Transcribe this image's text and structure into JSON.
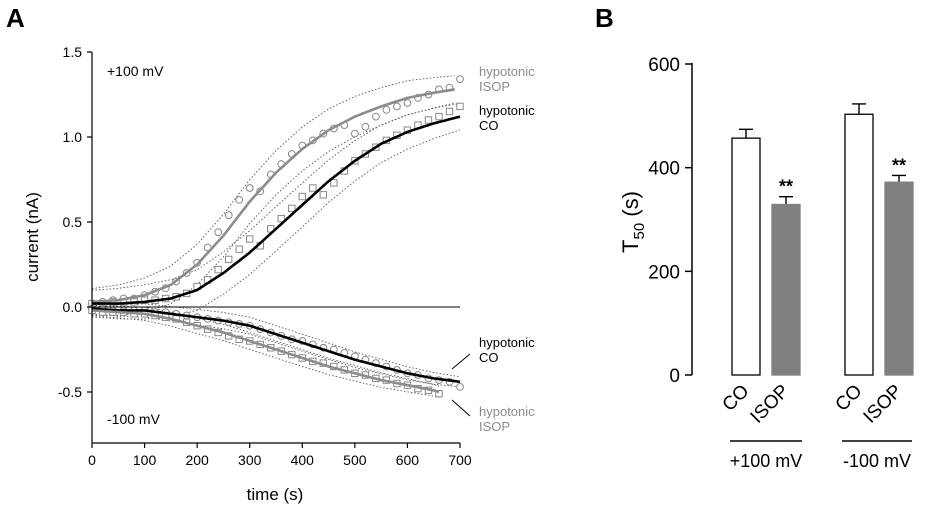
{
  "chart_data": [
    {
      "panel_label": "A",
      "type": "scatter",
      "xlabel": "time (s)",
      "ylabel": "current (nA)",
      "xlim": [
        0,
        700
      ],
      "ylim": [
        -0.8,
        1.5
      ],
      "xticks": [
        0,
        100,
        200,
        300,
        400,
        500,
        600,
        700
      ],
      "yticks": [
        -0.5,
        0.0,
        0.5,
        1.0,
        1.5
      ],
      "ytick_labels": [
        "-0.5",
        "0.0",
        "0.5",
        "1.0",
        "1.5"
      ],
      "annotations": {
        "pos_voltage": "+100 mV",
        "neg_voltage": "-100 mV",
        "label_pos_isop_1": "hypotonic",
        "label_pos_isop_2": "ISOP",
        "label_pos_co_1": "hypotonic",
        "label_pos_co_2": "CO",
        "label_neg_co_1": "hypotonic",
        "label_neg_co_2": "CO",
        "label_neg_isop_1": "hypotonic",
        "label_neg_isop_2": "ISOP"
      },
      "colors": {
        "isop": "#8c8c8c",
        "co": "#000000",
        "ci": "#555555"
      },
      "grid": false,
      "series": [
        {
          "name": "hypotonic ISOP",
          "marker": "circle",
          "x": [
            0,
            20,
            40,
            60,
            80,
            100,
            120,
            140,
            160,
            180,
            200,
            220,
            240,
            260,
            280,
            300,
            320,
            340,
            360,
            380,
            400,
            420,
            440,
            460,
            480,
            500,
            520,
            540,
            560,
            580,
            600,
            620,
            640,
            660,
            680,
            700
          ],
          "y": [
            0.02,
            0.03,
            0.04,
            0.05,
            0.05,
            0.07,
            0.09,
            0.11,
            0.15,
            0.2,
            0.26,
            0.35,
            0.44,
            0.54,
            0.63,
            0.7,
            0.68,
            0.78,
            0.84,
            0.9,
            0.95,
            0.98,
            1.02,
            1.05,
            1.07,
            1.02,
            1.06,
            1.12,
            1.16,
            1.18,
            1.2,
            1.23,
            1.25,
            1.28,
            1.29,
            1.34
          ],
          "fit_x": [
            0,
            50,
            100,
            150,
            200,
            250,
            300,
            350,
            400,
            450,
            500,
            550,
            600,
            650,
            690
          ],
          "fit_y": [
            0.03,
            0.04,
            0.07,
            0.13,
            0.25,
            0.42,
            0.62,
            0.79,
            0.93,
            1.04,
            1.12,
            1.18,
            1.23,
            1.26,
            1.28
          ]
        },
        {
          "name": "hypotonic CO",
          "marker": "square",
          "x": [
            0,
            20,
            40,
            60,
            80,
            100,
            120,
            140,
            160,
            180,
            200,
            220,
            240,
            260,
            280,
            300,
            320,
            340,
            360,
            380,
            400,
            420,
            440,
            460,
            480,
            500,
            520,
            540,
            560,
            580,
            600,
            620,
            640,
            660,
            680,
            700
          ],
          "y": [
            0.02,
            0.02,
            0.03,
            0.03,
            0.03,
            0.04,
            0.04,
            0.05,
            0.06,
            0.08,
            0.12,
            0.16,
            0.22,
            0.28,
            0.34,
            0.4,
            0.36,
            0.46,
            0.52,
            0.58,
            0.65,
            0.7,
            0.66,
            0.73,
            0.8,
            0.86,
            0.9,
            0.94,
            0.98,
            1.01,
            1.04,
            1.07,
            1.1,
            1.12,
            1.15,
            1.18
          ],
          "fit_x": [
            0,
            50,
            100,
            150,
            200,
            250,
            300,
            350,
            400,
            450,
            500,
            550,
            600,
            650,
            700
          ],
          "fit_y": [
            0.02,
            0.02,
            0.03,
            0.05,
            0.1,
            0.2,
            0.32,
            0.46,
            0.6,
            0.74,
            0.86,
            0.96,
            1.03,
            1.08,
            1.12
          ]
        },
        {
          "name": "hypotonic CO (-100 mV)",
          "marker": "circle",
          "x": [
            0,
            20,
            40,
            60,
            80,
            100,
            120,
            140,
            160,
            180,
            200,
            220,
            240,
            260,
            280,
            300,
            320,
            340,
            360,
            380,
            400,
            420,
            440,
            460,
            480,
            500,
            520,
            540,
            560,
            580,
            600,
            620,
            640,
            660,
            680,
            700
          ],
          "y": [
            -0.01,
            -0.01,
            -0.02,
            -0.02,
            -0.02,
            -0.02,
            -0.03,
            -0.03,
            -0.04,
            -0.05,
            -0.06,
            -0.07,
            -0.08,
            -0.09,
            -0.1,
            -0.11,
            -0.13,
            -0.15,
            -0.17,
            -0.19,
            -0.2,
            -0.22,
            -0.24,
            -0.25,
            -0.27,
            -0.29,
            -0.31,
            -0.33,
            -0.35,
            -0.37,
            -0.39,
            -0.4,
            -0.42,
            -0.43,
            -0.44,
            -0.47
          ],
          "fit_x": [
            0,
            50,
            100,
            150,
            200,
            250,
            300,
            350,
            400,
            450,
            500,
            550,
            600,
            650,
            700
          ],
          "fit_y": [
            -0.01,
            -0.02,
            -0.02,
            -0.04,
            -0.06,
            -0.08,
            -0.11,
            -0.16,
            -0.21,
            -0.26,
            -0.31,
            -0.35,
            -0.39,
            -0.42,
            -0.44
          ]
        },
        {
          "name": "hypotonic ISOP (-100 mV)",
          "marker": "square",
          "x": [
            0,
            20,
            40,
            60,
            80,
            100,
            120,
            140,
            160,
            180,
            200,
            220,
            240,
            260,
            280,
            300,
            320,
            340,
            360,
            380,
            400,
            420,
            440,
            460,
            480,
            500,
            520,
            540,
            560,
            580,
            600,
            620,
            640,
            660
          ],
          "y": [
            -0.02,
            -0.03,
            -0.03,
            -0.03,
            -0.04,
            -0.04,
            -0.05,
            -0.06,
            -0.07,
            -0.09,
            -0.11,
            -0.13,
            -0.15,
            -0.17,
            -0.19,
            -0.2,
            -0.22,
            -0.24,
            -0.26,
            -0.28,
            -0.3,
            -0.32,
            -0.33,
            -0.35,
            -0.37,
            -0.39,
            -0.4,
            -0.42,
            -0.43,
            -0.45,
            -0.46,
            -0.48,
            -0.49,
            -0.51
          ],
          "fit_x": [
            0,
            50,
            100,
            150,
            200,
            250,
            300,
            350,
            400,
            450,
            500,
            550,
            600,
            650,
            660
          ],
          "fit_y": [
            -0.02,
            -0.03,
            -0.04,
            -0.07,
            -0.11,
            -0.15,
            -0.2,
            -0.25,
            -0.3,
            -0.35,
            -0.39,
            -0.43,
            -0.46,
            -0.49,
            -0.5
          ]
        }
      ]
    },
    {
      "panel_label": "B",
      "type": "bar",
      "ylabel": "T",
      "ylabel_sub": "50",
      "ylabel_suffix": " (s)",
      "ylim": [
        0,
        600
      ],
      "yticks": [
        0,
        200,
        400,
        600
      ],
      "ytick_labels": [
        "0",
        "200",
        "400",
        "600"
      ],
      "categories": [
        "CO",
        "ISOP",
        "CO",
        "ISOP"
      ],
      "groups": [
        "+100 mV",
        "-100 mV"
      ],
      "values": [
        457,
        329,
        503,
        372
      ],
      "errors": [
        17,
        15,
        20,
        13
      ],
      "fills": [
        "#ffffff",
        "#808080",
        "#ffffff",
        "#808080"
      ],
      "significance": [
        "",
        "**",
        "",
        "**"
      ]
    }
  ]
}
